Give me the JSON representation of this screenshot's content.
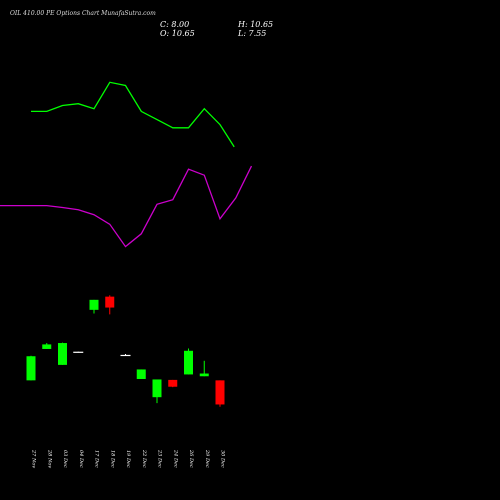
{
  "header": {
    "title": "OIL 410.00 PE Options  Chart MunafaSutra.com",
    "close": "C: 8.00",
    "open": "O: 10.65",
    "high": "H: 10.65",
    "low": "L: 7.55"
  },
  "colors": {
    "background": "#000000",
    "upper_band": "#00ff00",
    "lower_band": "#cc00cc",
    "bull": "#00ff00",
    "bear": "#ff0000",
    "neutral": "#ffffff"
  },
  "chart_data": {
    "type": "candlestick",
    "x": [
      "27 Nov",
      "28 Nov",
      "03 Dec",
      "04 Dec",
      "17 Dec",
      "18 Dec",
      "19 Dec",
      "22 Dec",
      "23 Dec",
      "24 Dec",
      "26 Dec",
      "29 Dec",
      "30 Dec"
    ],
    "candles": [
      {
        "open": 27.2,
        "high": 27.3,
        "low": 21.9,
        "close": 21.9,
        "color": "bull"
      },
      {
        "open": 29.8,
        "high": 30.1,
        "low": 28.8,
        "close": 28.8,
        "color": "bull"
      },
      {
        "open": 30.1,
        "high": 30.2,
        "low": 25.3,
        "close": 25.3,
        "color": "bull"
      },
      {
        "open": 28.2,
        "high": 28.2,
        "low": 28.0,
        "close": 28.0,
        "color": "neutral"
      },
      {
        "open": 39.6,
        "high": 39.6,
        "low": 36.6,
        "close": 37.4,
        "color": "bull"
      },
      {
        "open": 37.9,
        "high": 40.6,
        "low": 36.4,
        "close": 40.3,
        "color": "bear"
      },
      {
        "open": 27.5,
        "high": 27.7,
        "low": 27.3,
        "close": 27.5,
        "color": "neutral"
      },
      {
        "open": 24.3,
        "high": 24.3,
        "low": 22.2,
        "close": 22.2,
        "color": "bull"
      },
      {
        "open": 22.1,
        "high": 22.1,
        "low": 16.9,
        "close": 18.2,
        "color": "bull"
      },
      {
        "open": 20.5,
        "high": 22.0,
        "low": 20.4,
        "close": 22.0,
        "color": "bear"
      },
      {
        "open": 28.4,
        "high": 28.9,
        "low": 23.2,
        "close": 23.2,
        "color": "bull"
      },
      {
        "open": 23.4,
        "high": 26.2,
        "low": 22.8,
        "close": 22.8,
        "color": "bull"
      },
      {
        "open": 21.9,
        "high": 21.9,
        "low": 16.1,
        "close": 16.6,
        "color": "bear"
      }
    ],
    "upper_band": [
      81.0,
      81.0,
      82.3,
      82.7,
      81.6,
      87.4,
      86.7,
      81.0,
      79.2,
      77.4,
      77.4,
      81.6,
      78.1,
      73.2
    ],
    "lower_band": [
      60.3,
      60.3,
      59.9,
      59.4,
      58.3,
      56.2,
      51.3,
      54.1,
      60.6,
      61.6,
      68.3,
      67.0,
      57.4,
      62.0,
      69.0
    ],
    "upper_band_x": [
      0,
      1,
      2,
      3,
      4,
      5,
      6,
      7,
      8,
      9,
      10,
      11,
      12,
      12.9
    ],
    "lower_band_x": [
      -0.2,
      1,
      2,
      3,
      4,
      5,
      6,
      7,
      8,
      9,
      10,
      11,
      12,
      13,
      14
    ],
    "ylim": [
      0,
      100
    ]
  }
}
